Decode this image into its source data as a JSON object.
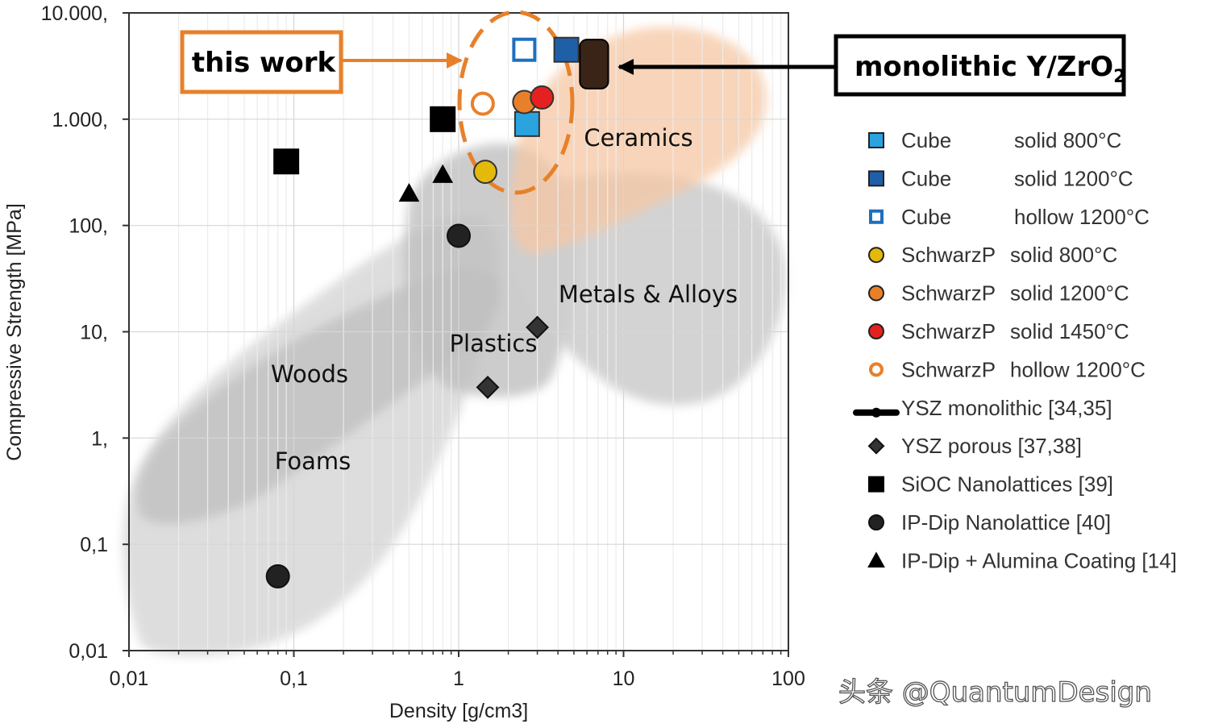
{
  "chart_data": {
    "type": "scatter",
    "xscale": "log",
    "yscale": "log",
    "xlabel": "Density [g/cm3]",
    "ylabel": "Compressive Strength [MPa]",
    "xlim": [
      0.01,
      100
    ],
    "ylim": [
      0.01,
      10000
    ],
    "grid": true,
    "x_ticks": [
      {
        "value": 0.01,
        "label": "0,01"
      },
      {
        "value": 0.1,
        "label": "0,1"
      },
      {
        "value": 1,
        "label": "1"
      },
      {
        "value": 10,
        "label": "10"
      },
      {
        "value": 100,
        "label": "100"
      }
    ],
    "y_ticks": [
      {
        "value": 0.01,
        "label": "0,01"
      },
      {
        "value": 0.1,
        "label": "0,1"
      },
      {
        "value": 1,
        "label": "1,"
      },
      {
        "value": 10,
        "label": "10,"
      },
      {
        "value": 100,
        "label": "100,"
      },
      {
        "value": 1000,
        "label": "1.000,"
      },
      {
        "value": 10000,
        "label": "10.000,"
      }
    ],
    "regions": [
      {
        "label": "Ceramics",
        "color": "#f6c8a4"
      },
      {
        "label": "Metals & Alloys",
        "color": "#cfcfcf"
      },
      {
        "label": "Plastics",
        "color": "#bdbdbd"
      },
      {
        "label": "Woods",
        "color": "#bcbcbc"
      },
      {
        "label": "Foams",
        "color": "#d9d9d9"
      }
    ],
    "series": [
      {
        "name": "Cube",
        "condition": "solid 800°C",
        "marker": "square",
        "fill": "#2aa3df",
        "stroke": "#333333",
        "points": [
          {
            "x": 2.6,
            "y": 900
          }
        ]
      },
      {
        "name": "Cube",
        "condition": "solid 1200°C",
        "marker": "square",
        "fill": "#1f5fa8",
        "stroke": "#333333",
        "points": [
          {
            "x": 4.5,
            "y": 4500
          }
        ]
      },
      {
        "name": "Cube",
        "condition": "hollow 1200°C",
        "marker": "square-open",
        "fill": "#ffffff",
        "stroke": "#1f6fc0",
        "points": [
          {
            "x": 2.5,
            "y": 4500
          }
        ]
      },
      {
        "name": "SchwarzP",
        "condition": "solid 800°C",
        "marker": "circle",
        "fill": "#e3b90a",
        "stroke": "#333333",
        "points": [
          {
            "x": 1.45,
            "y": 320
          }
        ]
      },
      {
        "name": "SchwarzP",
        "condition": "solid 1200°C",
        "marker": "circle",
        "fill": "#e8802a",
        "stroke": "#333333",
        "points": [
          {
            "x": 2.5,
            "y": 1450
          }
        ]
      },
      {
        "name": "SchwarzP",
        "condition": "solid 1450°C",
        "marker": "circle",
        "fill": "#e52020",
        "stroke": "#333333",
        "points": [
          {
            "x": 3.2,
            "y": 1600
          }
        ]
      },
      {
        "name": "SchwarzP",
        "condition": "hollow 1200°C",
        "marker": "circle-open",
        "fill": "#ffffff",
        "stroke": "#e8802a",
        "points": [
          {
            "x": 1.4,
            "y": 1400
          }
        ]
      },
      {
        "name": "YSZ monolithic [34,35]",
        "condition": "",
        "marker": "bar",
        "fill": "#3a2418",
        "stroke": "#000000",
        "points": [
          {
            "x": 6.0,
            "y": 3300
          }
        ]
      },
      {
        "name": "YSZ porous [37,38]",
        "condition": "",
        "marker": "diamond",
        "fill": "#333333",
        "stroke": "#111111",
        "points": [
          {
            "x": 1.5,
            "y": 3
          },
          {
            "x": 3.0,
            "y": 11
          }
        ]
      },
      {
        "name": "SiOC Nanolattices [39]",
        "condition": "",
        "marker": "square",
        "fill": "#000000",
        "stroke": "#000000",
        "points": [
          {
            "x": 0.09,
            "y": 400
          },
          {
            "x": 0.8,
            "y": 1000
          }
        ]
      },
      {
        "name": "IP-Dip Nanolattice [40]",
        "condition": "",
        "marker": "circle",
        "fill": "#222222",
        "stroke": "#111111",
        "points": [
          {
            "x": 0.08,
            "y": 0.05
          },
          {
            "x": 1.0,
            "y": 80
          }
        ]
      },
      {
        "name": "IP-Dip + Alumina Coating [14]",
        "condition": "",
        "marker": "triangle",
        "fill": "#000000",
        "stroke": "#000000",
        "points": [
          {
            "x": 0.5,
            "y": 200
          },
          {
            "x": 0.8,
            "y": 300
          }
        ]
      }
    ],
    "annotations": {
      "this_work": {
        "text": "this work",
        "color": "#e8802a"
      },
      "monolithic": {
        "text": "monolithic Y/ZrO",
        "subscript": "2",
        "color": "#000000"
      }
    }
  },
  "watermark": "头条 @QuantumDesign"
}
